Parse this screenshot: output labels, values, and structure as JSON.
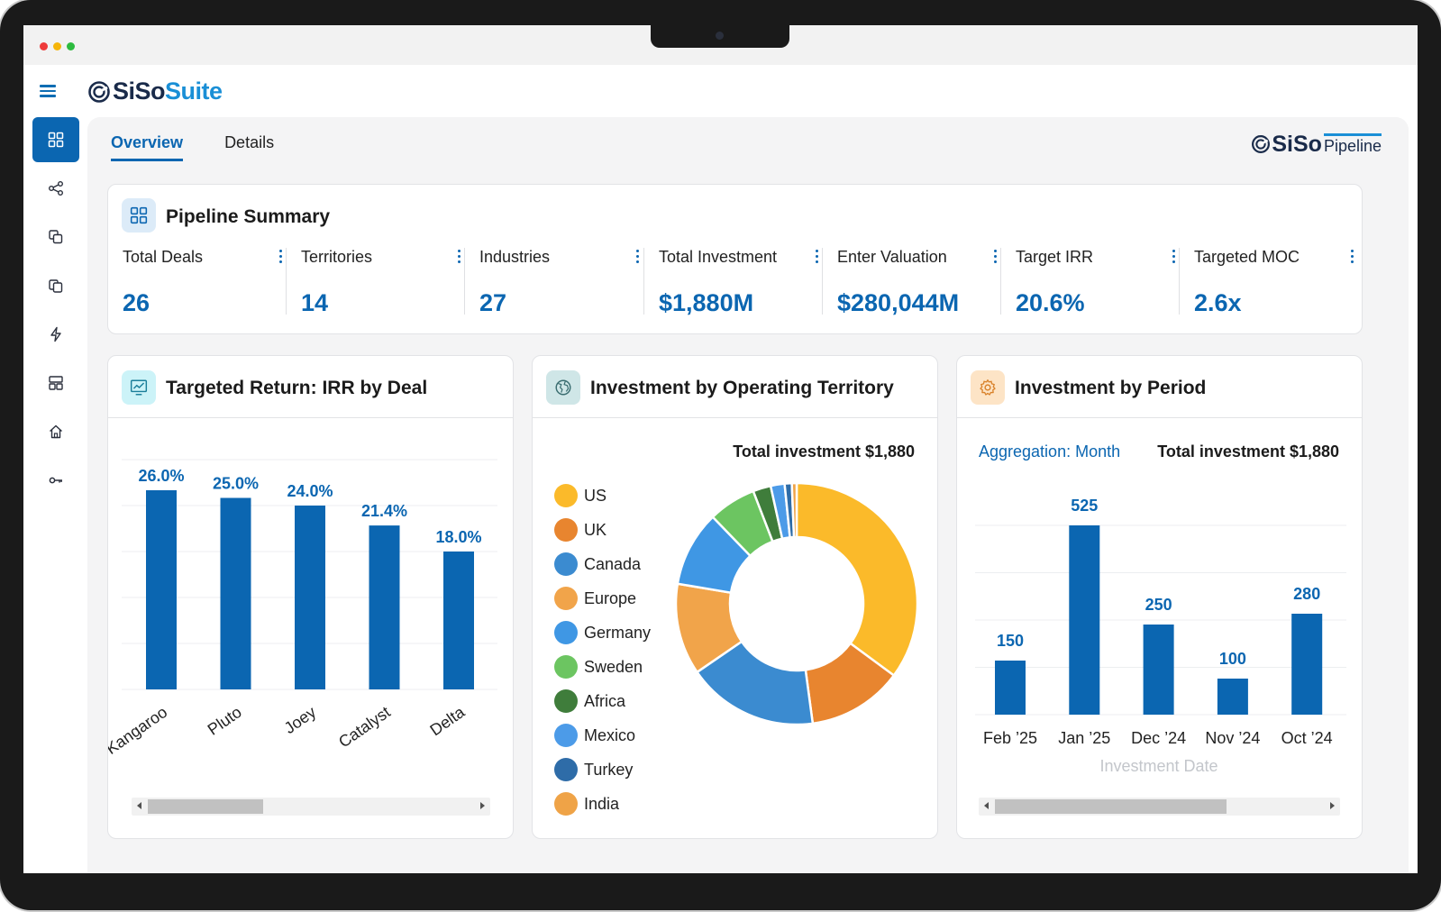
{
  "brand": {
    "logo_siso": "SiSo",
    "logo_suite": "Suite",
    "pipeline_siso": "SiSo",
    "pipeline_word": "Pipeline"
  },
  "tabs": [
    {
      "label": "Overview",
      "active": true
    },
    {
      "label": "Details",
      "active": false
    }
  ],
  "summary": {
    "title": "Pipeline Summary",
    "metrics": [
      {
        "label": "Total Deals",
        "value": "26"
      },
      {
        "label": "Territories",
        "value": "14"
      },
      {
        "label": "Industries",
        "value": "27"
      },
      {
        "label": "Total Investment",
        "value": "$1,880M"
      },
      {
        "label": "Enter Valuation",
        "value": "$280,044M"
      },
      {
        "label": "Target IRR",
        "value": "20.6%"
      },
      {
        "label": "Targeted MOC",
        "value": "2.6x"
      }
    ]
  },
  "irr_card": {
    "title": "Targeted Return: IRR by Deal"
  },
  "territory_card": {
    "title": "Investment by Operating Territory",
    "total": "Total investment $1,880"
  },
  "period_card": {
    "title": "Investment by Period",
    "aggregation": "Aggregation: Month",
    "total": "Total investment $1,880"
  },
  "chart_data": [
    {
      "type": "bar",
      "title": "Targeted Return: IRR by Deal",
      "categories": [
        "Kangaroo",
        "Pluto",
        "Joey",
        "Catalyst",
        "Delta"
      ],
      "values": [
        26.0,
        25.0,
        24.0,
        21.4,
        18.0
      ],
      "labels": [
        "26.0%",
        "25.0%",
        "24.0%",
        "21.4%",
        "18.0%"
      ],
      "ylim": [
        0,
        30
      ],
      "xlabel": "",
      "ylabel": ""
    },
    {
      "type": "pie",
      "title": "Investment by Operating Territory",
      "categories": [
        "US",
        "UK",
        "Canada",
        "Europe",
        "Germany",
        "Sweden",
        "Africa",
        "Mexico",
        "Turkey",
        "India"
      ],
      "values": [
        660,
        240,
        330,
        230,
        190,
        120,
        45,
        35,
        18,
        12
      ],
      "colors": [
        "#FBBA2A",
        "#E8852F",
        "#3B8BD0",
        "#F1A44A",
        "#3F97E4",
        "#6CC561",
        "#3F7D3B",
        "#4C9BE8",
        "#2E6CA8",
        "#EFA347"
      ]
    },
    {
      "type": "bar",
      "title": "Investment by Period",
      "categories": [
        "Feb ’25",
        "Jan ’25",
        "Dec ’24",
        "Nov ’24",
        "Oct ’24"
      ],
      "values": [
        150,
        525,
        250,
        100,
        280
      ],
      "labels": [
        "150",
        "525",
        "250",
        "100",
        "280"
      ],
      "xlabel": "Investment Date",
      "ylabel": "",
      "ylim": [
        0,
        600
      ]
    }
  ],
  "colors": {
    "accent": "#0B66B1",
    "brand_light": "#1A8FD6",
    "bar": "#0B66B1"
  }
}
